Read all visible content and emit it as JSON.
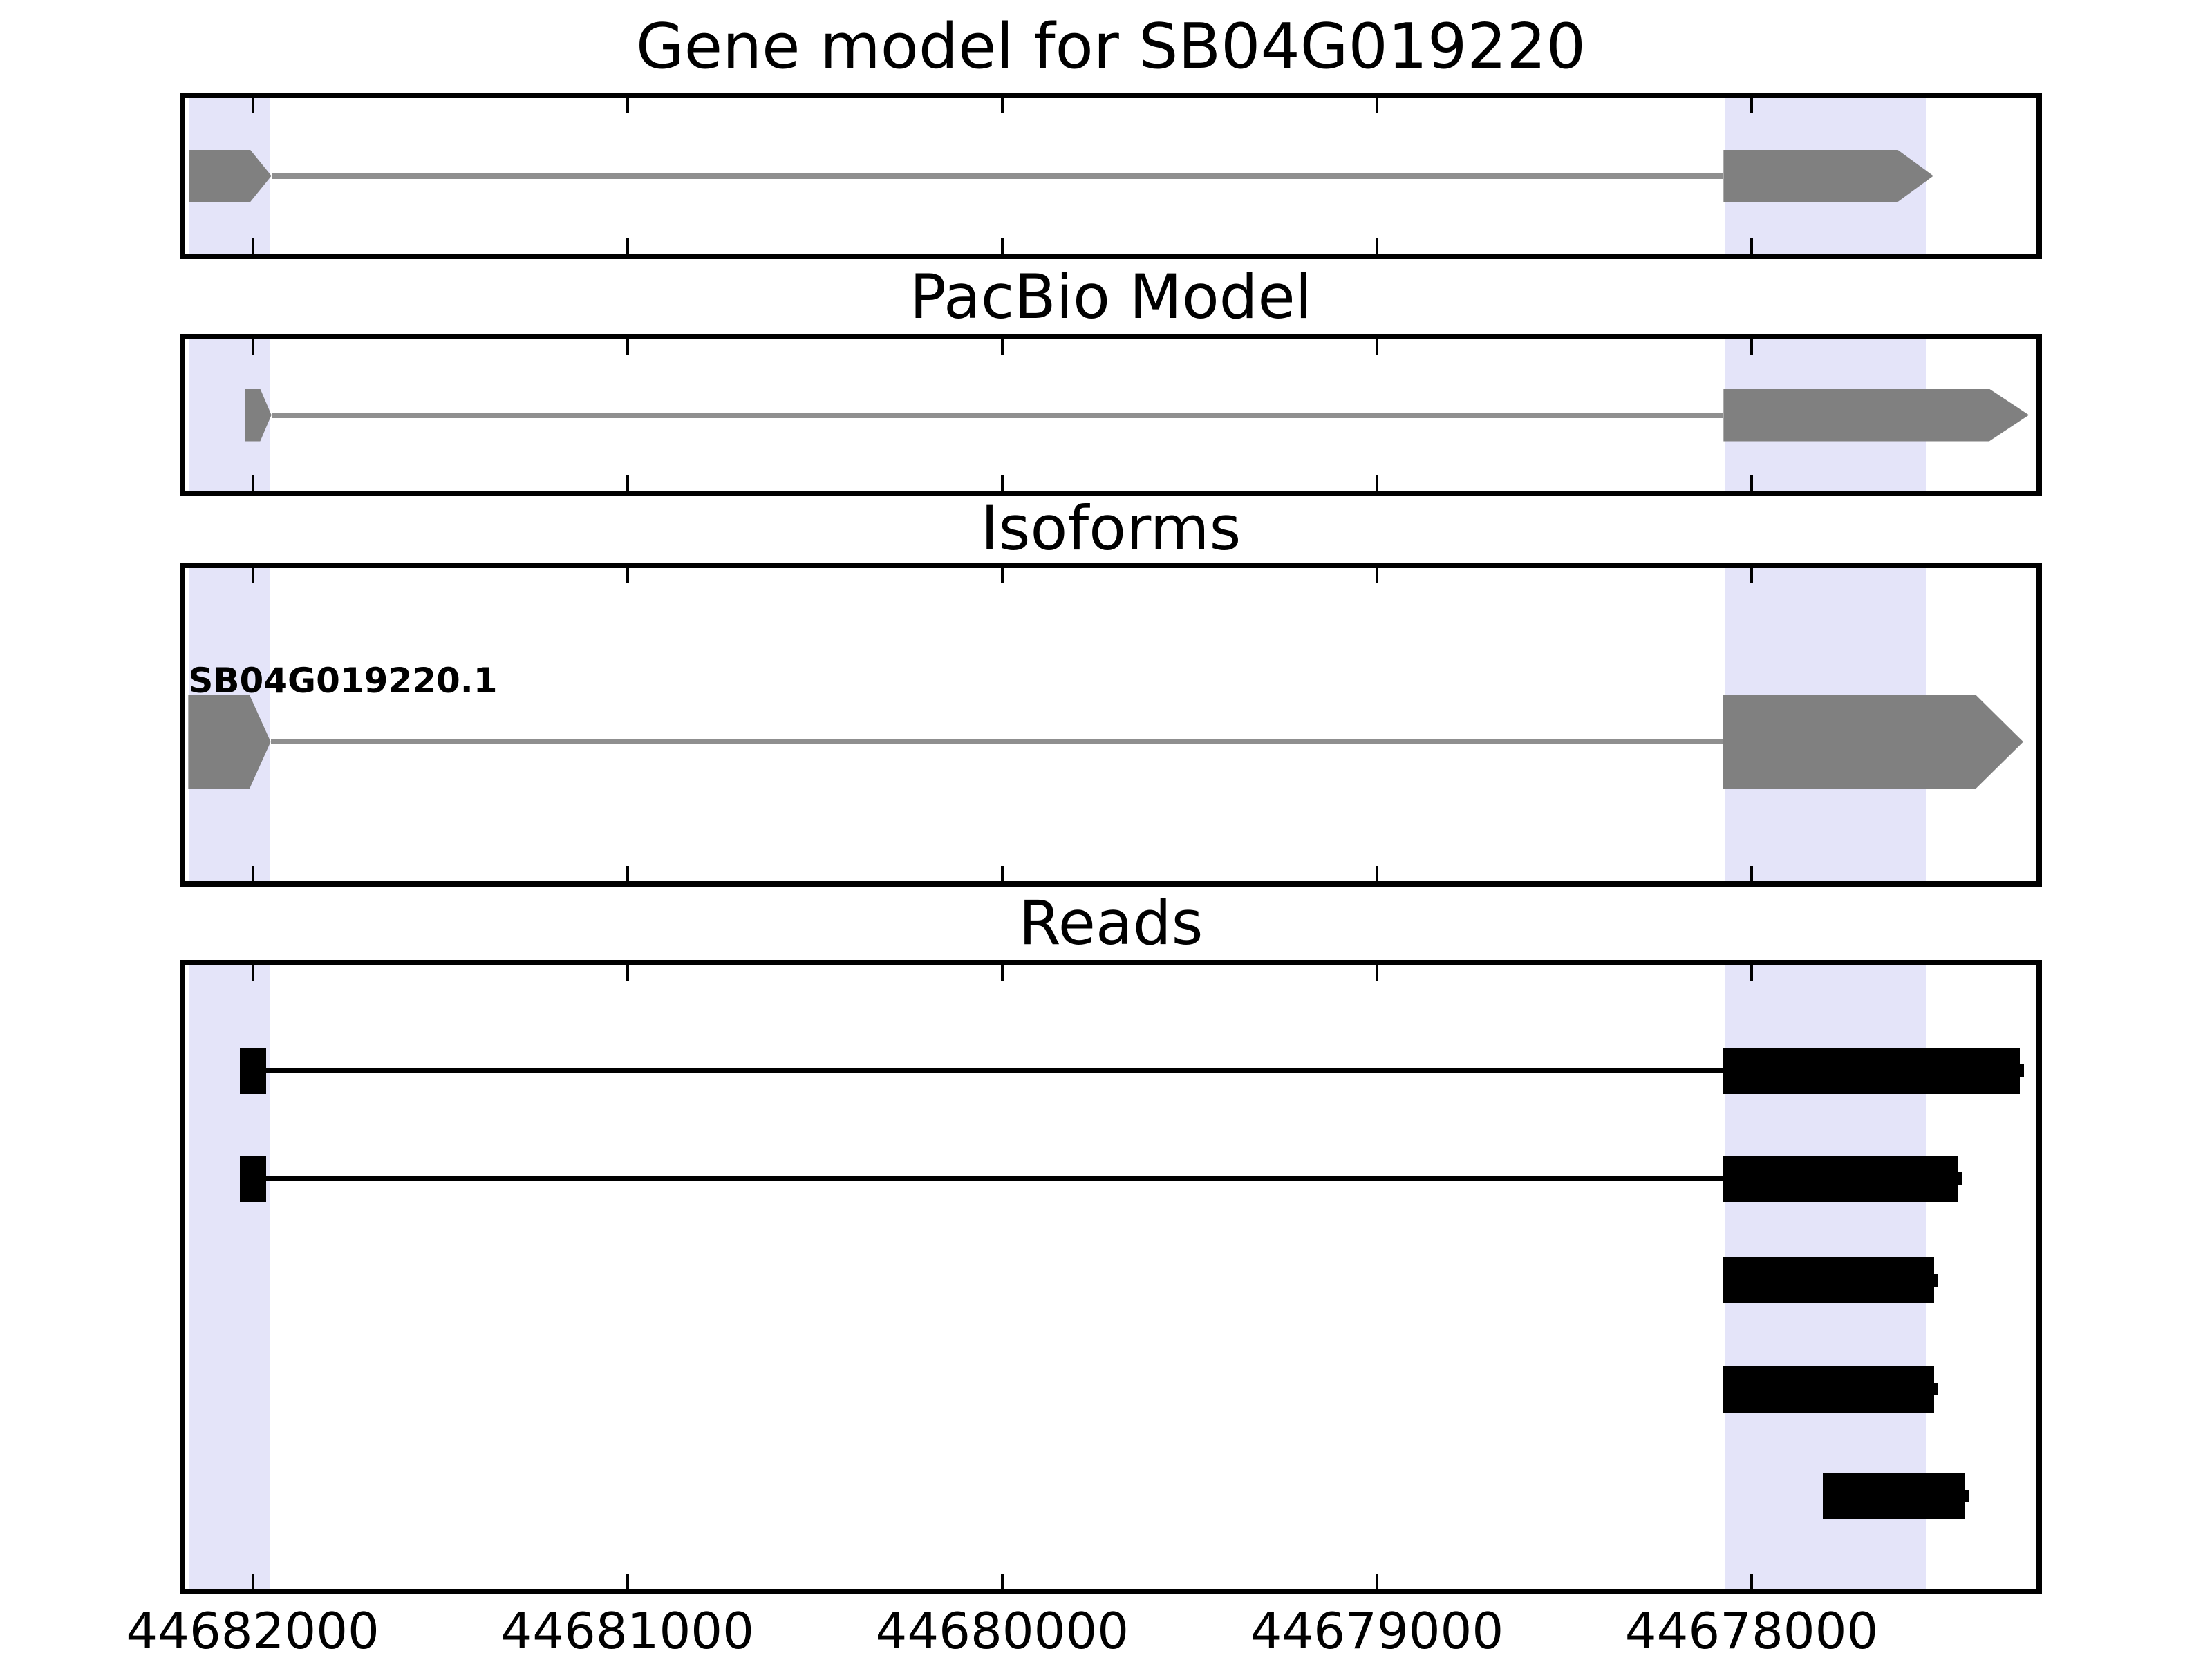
{
  "chart_data": {
    "type": "genome-track-plot",
    "title": "Gene model for SB04G019220",
    "panels": [
      {
        "id": "gene_model",
        "title": "Gene model for SB04G019220"
      },
      {
        "id": "pacbio_model",
        "title": "PacBio Model"
      },
      {
        "id": "isoforms",
        "title": "Isoforms"
      },
      {
        "id": "reads",
        "title": "Reads"
      }
    ],
    "xlim": [
      44682180,
      44677240
    ],
    "x_axis_reversed": true,
    "x_ticks": [
      44682000,
      44681000,
      44680000,
      44679000,
      44678000
    ],
    "x_tick_labels": [
      "44682000",
      "44681000",
      "44680000",
      "44679000",
      "44678000"
    ],
    "highlight_regions": [
      {
        "start": 44682170,
        "end": 44681955
      },
      {
        "start": 44678070,
        "end": 44677535
      }
    ],
    "colors": {
      "exon": "#808080",
      "connector": "#8f8f8f",
      "read": "#000000",
      "highlight": "#e4e4f9",
      "frame": "#000000",
      "background": "#ffffff"
    },
    "tracks": {
      "gene_model": [
        {
          "exons": [
            {
              "s": 44682170,
              "e": 44681950,
              "tip": 57
            },
            {
              "s": 44678075,
              "e": 44677515,
              "tip": 96
            }
          ],
          "line": {
            "s": 44681950,
            "e": 44678075
          }
        }
      ],
      "pacbio_model": [
        {
          "exons": [
            {
              "s": 44682020,
              "e": 44681950,
              "tip": 30
            },
            {
              "s": 44678075,
              "e": 44677260,
              "tip": 106
            }
          ],
          "line": {
            "s": 44681950,
            "e": 44678075
          }
        }
      ],
      "isoforms": [
        {
          "label": "SB04G019220.1",
          "exons": [
            {
              "s": 44682172,
              "e": 44681952,
              "tip": 57
            },
            {
              "s": 44678078,
              "e": 44677275,
              "tip": 128
            }
          ],
          "line": {
            "s": 44681952,
            "e": 44678078
          }
        }
      ],
      "reads": [
        {
          "exons": [
            {
              "s": 44682035,
              "e": 44681965
            },
            {
              "s": 44678078,
              "e": 44677285,
              "nub": true
            }
          ],
          "line": {
            "s": 44681965,
            "e": 44678078
          }
        },
        {
          "exons": [
            {
              "s": 44682035,
              "e": 44681965
            },
            {
              "s": 44678075,
              "e": 44677450,
              "nub": true
            }
          ],
          "line": {
            "s": 44681965,
            "e": 44678075
          }
        },
        {
          "exons": [
            {
              "s": 44678075,
              "e": 44677513,
              "nub": true
            }
          ]
        },
        {
          "exons": [
            {
              "s": 44678075,
              "e": 44677513,
              "nub": true
            }
          ]
        },
        {
          "exons": [
            {
              "s": 44677810,
              "e": 44677430,
              "nub": true
            }
          ]
        }
      ]
    }
  }
}
